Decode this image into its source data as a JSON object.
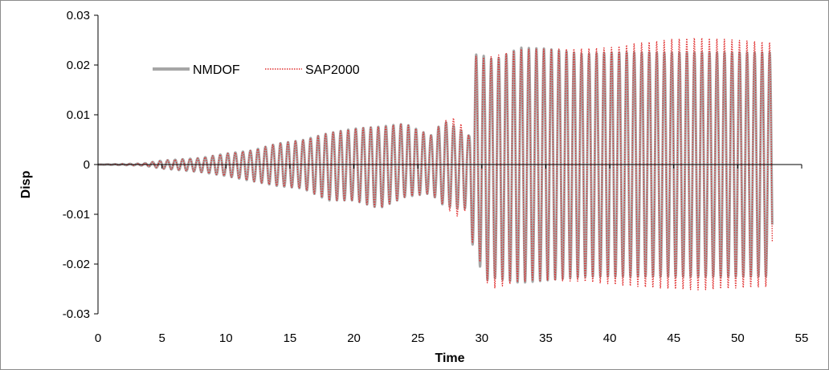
{
  "chart_data": {
    "type": "line",
    "title": "",
    "xlabel": "Time",
    "ylabel": "Disp",
    "xlim": [
      0,
      55
    ],
    "ylim": [
      -0.03,
      0.03
    ],
    "x_ticks": [
      "0",
      "5",
      "10",
      "15",
      "20",
      "25",
      "30",
      "35",
      "40",
      "45",
      "50",
      "55"
    ],
    "y_ticks": [
      "0.03",
      "0.02",
      "0.01",
      "0",
      "-0.01",
      "-0.02",
      "-0.03"
    ],
    "grid": false,
    "legend_position": "top-left",
    "series": [
      {
        "name": "NMDOF",
        "color": "#a6a6a6",
        "style": "solid",
        "envelope": {
          "x": [
            0,
            3.5,
            5,
            8,
            10,
            12,
            14,
            16,
            18,
            20,
            22,
            24,
            26,
            27,
            28,
            29,
            29.4,
            29.8,
            30,
            31,
            33,
            35,
            38,
            40,
            42,
            45,
            47,
            50,
            52.7
          ],
          "y_max": [
            0,
            0.0002,
            0.0008,
            0.0013,
            0.0022,
            0.0028,
            0.0042,
            0.0049,
            0.0063,
            0.0072,
            0.0076,
            0.0082,
            0.0058,
            0.0087,
            0.0075,
            0.0058,
            0.0215,
            0.023,
            0.022,
            0.021,
            0.0235,
            0.0233,
            0.0222,
            0.0225,
            0.0225,
            0.0225,
            0.0225,
            0.0225,
            0.0225
          ],
          "y_min": [
            0,
            -0.0002,
            -0.0008,
            -0.0015,
            -0.0023,
            -0.0033,
            -0.0043,
            -0.0048,
            -0.0072,
            -0.0072,
            -0.0088,
            -0.0065,
            -0.0058,
            -0.0082,
            -0.0088,
            -0.0088,
            -0.0195,
            -0.0193,
            -0.0235,
            -0.0228,
            -0.0238,
            -0.0233,
            -0.0225,
            -0.0225,
            -0.0225,
            -0.0225,
            -0.0225,
            -0.0225,
            -0.0225
          ]
        }
      },
      {
        "name": "SAP2000",
        "color": "#e03030",
        "style": "dotted",
        "envelope": {
          "x": [
            0,
            3.5,
            5,
            8,
            10,
            12,
            14,
            16,
            18,
            20,
            22,
            24,
            26,
            27,
            28,
            29,
            29.4,
            29.8,
            30,
            31,
            33,
            35,
            38,
            40,
            42,
            45,
            47,
            50,
            52.7
          ],
          "y_max": [
            0,
            0.0002,
            0.0008,
            0.0013,
            0.0022,
            0.0028,
            0.0042,
            0.0049,
            0.0063,
            0.0072,
            0.0076,
            0.0082,
            0.0058,
            0.0087,
            0.0095,
            0.0058,
            0.0215,
            0.0222,
            0.0215,
            0.0218,
            0.0232,
            0.0232,
            0.0233,
            0.0235,
            0.0243,
            0.0252,
            0.0255,
            0.025,
            0.0245
          ],
          "y_min": [
            0,
            -0.0002,
            -0.0008,
            -0.0015,
            -0.0023,
            -0.0033,
            -0.0043,
            -0.0048,
            -0.0072,
            -0.0072,
            -0.0088,
            -0.0065,
            -0.0058,
            -0.0082,
            -0.0105,
            -0.0088,
            -0.0195,
            -0.0185,
            -0.023,
            -0.0248,
            -0.0235,
            -0.0233,
            -0.0235,
            -0.024,
            -0.0245,
            -0.025,
            -0.0252,
            -0.0248,
            -0.0245
          ]
        }
      }
    ]
  }
}
